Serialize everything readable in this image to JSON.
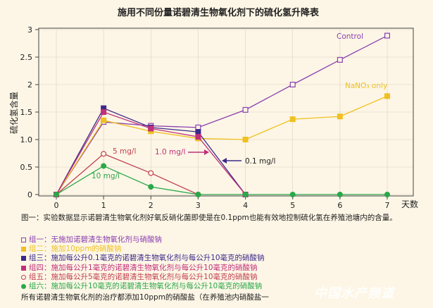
{
  "chart_data": {
    "type": "line",
    "title": "施用不同份量诺碧清生物氧化剂下的硫化氢升降表",
    "ylabel": "硫化氢含量",
    "xlabel": "天数",
    "x": [
      0,
      1,
      2,
      3,
      4,
      5,
      6,
      7
    ],
    "xlim": [
      0,
      7
    ],
    "ylim": [
      0,
      3
    ],
    "yticks": [
      "0",
      "0.5",
      "1.0",
      "1.5",
      "2",
      "2.5",
      "3"
    ],
    "series": [
      {
        "name": "Control",
        "color": "#8a3fb0",
        "marker": "square-open",
        "points": [
          [
            0,
            0
          ],
          [
            1,
            1.32
          ],
          [
            2,
            1.25
          ],
          [
            3,
            1.22
          ],
          [
            4,
            1.54
          ],
          [
            5,
            2.0
          ],
          [
            6,
            2.45
          ],
          [
            7,
            2.89
          ]
        ]
      },
      {
        "name": "NaNO3 only",
        "color": "#f0c020",
        "marker": "square-filled",
        "points": [
          [
            0,
            0
          ],
          [
            1,
            1.35
          ],
          [
            2,
            1.15
          ],
          [
            3,
            1.02
          ],
          [
            4,
            1.0
          ],
          [
            5,
            1.37
          ],
          [
            6,
            1.42
          ],
          [
            7,
            1.79
          ]
        ]
      },
      {
        "name": "0.1 mg/l",
        "color": "#3b2a8a",
        "marker": "square-filled",
        "points": [
          [
            0,
            0
          ],
          [
            1,
            1.57
          ],
          [
            2,
            1.22
          ],
          [
            3,
            1.14
          ],
          [
            4,
            0
          ]
        ]
      },
      {
        "name": "1.0 mg/l",
        "color": "#c0307a",
        "marker": "square-filled",
        "points": [
          [
            0,
            0
          ],
          [
            1,
            1.5
          ],
          [
            2,
            1.2
          ],
          [
            3,
            1.05
          ],
          [
            4,
            0
          ]
        ]
      },
      {
        "name": "5 mg/l",
        "color": "#c04050",
        "marker": "circle-open",
        "points": [
          [
            0,
            0
          ],
          [
            1,
            0.74
          ],
          [
            2,
            0.39
          ],
          [
            3,
            0
          ]
        ]
      },
      {
        "name": "10 mg/l",
        "color": "#2aa84a",
        "marker": "circle-filled",
        "points": [
          [
            0,
            0
          ],
          [
            1,
            0.52
          ],
          [
            2,
            0.14
          ],
          [
            3,
            0
          ],
          [
            4,
            0
          ],
          [
            5,
            0
          ],
          [
            6,
            0
          ],
          [
            7,
            0
          ]
        ]
      }
    ],
    "annotations": [
      {
        "text": "Control",
        "color": "#8a3fb0"
      },
      {
        "text": "NaNO₃ only",
        "color": "#f0c020"
      },
      {
        "text": "0.1 mg/l",
        "color": "#222222"
      },
      {
        "text": "1.0 mg/l",
        "color": "#c0307a"
      },
      {
        "text": "5 mg/l",
        "color": "#c04050"
      },
      {
        "text": "10 mg/l",
        "color": "#2aa84a"
      }
    ]
  },
  "caption": "图一：实验数据显示诺碧清生物氧化剂好氧反硝化菌即使是在0.1ppm也能有效地控制硫化氢在养殖池塘内的含量。",
  "legend": [
    {
      "text": "组一：无施加诺碧清生物氧化剂与硝酸钠",
      "color": "#8a3fb0",
      "marker": "square-open"
    },
    {
      "text": "组二：施加10ppm的硝酸钠",
      "color": "#f0c020",
      "marker": "square-filled"
    },
    {
      "text": "组三：施加每公升0.1毫克的诺碧清生物氧化剂与每公升10毫克的硝酸钠",
      "color": "#3b2a8a",
      "marker": "square-filled"
    },
    {
      "text": "组四：施加每公升1毫克的诺碧清生物氧化剂与每公升10毫克的硝酸钠",
      "color": "#c0307a",
      "marker": "square-filled"
    },
    {
      "text": "组五：施加每公升5毫克的诺碧清生物氧化剂与每公升10毫克的硝酸钠",
      "color": "#c04050",
      "marker": "circle-open"
    },
    {
      "text": "组六：施加每公升10毫克的诺碧清生物氧化剂与每公升10毫克的硝酸钠",
      "color": "#2aa84a",
      "marker": "circle-filled"
    }
  ],
  "footnote": "所有诺碧清生物氧化剂的治疗都添加10ppm的硝酸盐（在养殖池内硝酸盐一",
  "watermark": "中国水产频道"
}
